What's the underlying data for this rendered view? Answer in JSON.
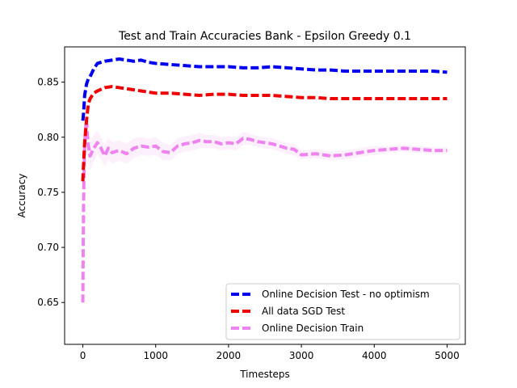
{
  "chart_data": {
    "type": "line",
    "title": "Test and Train Accuracies Bank - Epsilon Greedy 0.1",
    "xlabel": "Timesteps",
    "ylabel": "Accuracy",
    "xlim": [
      -250,
      5250
    ],
    "ylim": [
      0.612,
      0.882
    ],
    "xticks": [
      0,
      1000,
      2000,
      3000,
      4000,
      5000
    ],
    "xtick_labels": [
      "0",
      "1000",
      "2000",
      "3000",
      "4000",
      "5000"
    ],
    "yticks": [
      0.65,
      0.7,
      0.75,
      0.8,
      0.85
    ],
    "ytick_labels": [
      "0.65",
      "0.70",
      "0.75",
      "0.80",
      "0.85"
    ],
    "grid": false,
    "legend_position": "lower-right",
    "series": [
      {
        "name": "Online Decision Test - no optimism",
        "color": "#0000ee",
        "style": "dashed",
        "x": [
          0,
          10,
          25,
          50,
          75,
          100,
          150,
          200,
          300,
          400,
          500,
          600,
          700,
          800,
          900,
          1000,
          1200,
          1400,
          1600,
          1800,
          2000,
          2200,
          2400,
          2600,
          2800,
          3000,
          3200,
          3400,
          3600,
          3800,
          4000,
          4200,
          4400,
          4600,
          4800,
          5000
        ],
        "y": [
          0.815,
          0.822,
          0.838,
          0.848,
          0.853,
          0.855,
          0.862,
          0.867,
          0.869,
          0.87,
          0.871,
          0.87,
          0.869,
          0.87,
          0.868,
          0.867,
          0.866,
          0.865,
          0.864,
          0.864,
          0.864,
          0.863,
          0.863,
          0.864,
          0.863,
          0.862,
          0.861,
          0.861,
          0.86,
          0.86,
          0.86,
          0.86,
          0.86,
          0.86,
          0.86,
          0.859
        ]
      },
      {
        "name": "All data SGD Test",
        "color": "#ee0000",
        "style": "dashed",
        "x": [
          0,
          10,
          25,
          50,
          75,
          100,
          150,
          200,
          300,
          400,
          500,
          600,
          700,
          800,
          1000,
          1200,
          1400,
          1600,
          1800,
          2000,
          2200,
          2400,
          2600,
          2800,
          3000,
          3200,
          3400,
          3600,
          3800,
          4000,
          4200,
          4400,
          4600,
          4800,
          5000
        ],
        "y": [
          0.76,
          0.775,
          0.795,
          0.815,
          0.83,
          0.835,
          0.84,
          0.842,
          0.845,
          0.846,
          0.845,
          0.844,
          0.843,
          0.842,
          0.84,
          0.84,
          0.839,
          0.838,
          0.839,
          0.839,
          0.838,
          0.838,
          0.838,
          0.837,
          0.836,
          0.836,
          0.835,
          0.835,
          0.835,
          0.835,
          0.835,
          0.835,
          0.835,
          0.835,
          0.835
        ]
      },
      {
        "name": "Online Decision Train",
        "color": "#ee82ee",
        "style": "dashed",
        "x": [
          0,
          5,
          10,
          20,
          30,
          40,
          50,
          70,
          100,
          150,
          200,
          250,
          300,
          350,
          400,
          500,
          600,
          700,
          800,
          900,
          1000,
          1100,
          1200,
          1300,
          1400,
          1500,
          1600,
          1700,
          1800,
          1900,
          2000,
          2100,
          2200,
          2300,
          2400,
          2500,
          2600,
          2700,
          2800,
          2900,
          3000,
          3200,
          3400,
          3600,
          3800,
          4000,
          4200,
          4400,
          4600,
          4800,
          5000
        ],
        "y": [
          0.65,
          0.7,
          0.74,
          0.78,
          0.8,
          0.81,
          0.815,
          0.795,
          0.783,
          0.79,
          0.795,
          0.79,
          0.783,
          0.79,
          0.786,
          0.788,
          0.785,
          0.79,
          0.792,
          0.791,
          0.792,
          0.787,
          0.786,
          0.792,
          0.794,
          0.795,
          0.797,
          0.796,
          0.796,
          0.794,
          0.795,
          0.794,
          0.799,
          0.798,
          0.796,
          0.795,
          0.794,
          0.792,
          0.79,
          0.789,
          0.784,
          0.785,
          0.783,
          0.784,
          0.786,
          0.788,
          0.789,
          0.79,
          0.789,
          0.788,
          0.788
        ],
        "band_half_width": [
          0.03,
          0.03,
          0.028,
          0.025,
          0.022,
          0.02,
          0.018,
          0.015,
          0.013,
          0.012,
          0.011,
          0.01,
          0.01,
          0.01,
          0.01,
          0.009,
          0.009,
          0.009,
          0.008,
          0.008,
          0.008,
          0.008,
          0.007,
          0.007,
          0.007,
          0.007,
          0.007,
          0.006,
          0.006,
          0.006,
          0.006,
          0.006,
          0.006,
          0.005,
          0.005,
          0.005,
          0.005,
          0.005,
          0.005,
          0.005,
          0.004,
          0.004,
          0.004,
          0.004,
          0.004,
          0.004,
          0.003,
          0.003,
          0.003,
          0.003,
          0.003
        ]
      }
    ]
  }
}
